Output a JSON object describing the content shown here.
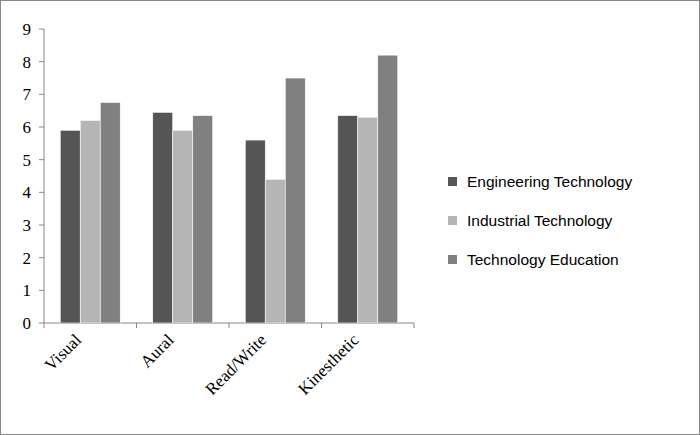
{
  "chart_data": {
    "type": "bar",
    "categories": [
      "Visual",
      "Aural",
      "Read/Write",
      "Kinesthetic"
    ],
    "series": [
      {
        "name": "Engineering Technology",
        "color": "#555555",
        "values": [
          5.9,
          6.45,
          5.6,
          6.35
        ]
      },
      {
        "name": "Industrial Technology",
        "color": "#b5b5b5",
        "values": [
          6.2,
          5.9,
          4.4,
          6.3
        ]
      },
      {
        "name": "Technology Education",
        "color": "#808080",
        "values": [
          6.75,
          6.35,
          7.5,
          8.2
        ]
      }
    ],
    "ylim": [
      0,
      9
    ],
    "yticks": [
      0,
      1,
      2,
      3,
      4,
      5,
      6,
      7,
      8,
      9
    ],
    "grid": false,
    "legend": "right"
  }
}
